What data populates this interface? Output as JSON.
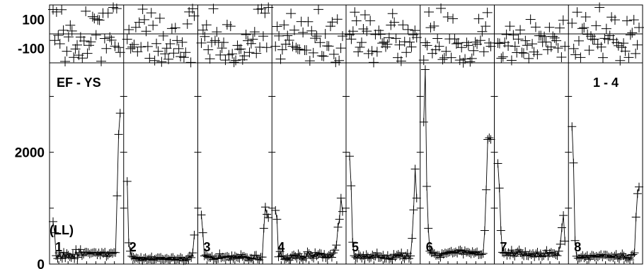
{
  "chart_data": {
    "type": "scatter",
    "panel_labels": [
      "1",
      "2",
      "3",
      "4",
      "5",
      "6",
      "7",
      "8"
    ],
    "annotations": {
      "left_title": "EF - YS",
      "right_title": "1 - 4",
      "unit_label": "(LL)"
    },
    "top_strip": {
      "y_ticks": [
        "100",
        "-100"
      ],
      "ylim": [
        -200,
        200
      ],
      "reference_line": 0,
      "marker": "+",
      "values": [
        [
          168,
          -45,
          152,
          -10,
          -68,
          167,
          25,
          -190,
          -120,
          -21,
          60,
          20,
          -162,
          -104,
          -77,
          -147,
          -22,
          -167,
          -49,
          157,
          -135,
          -79,
          -55,
          119,
          107,
          -8,
          98,
          95,
          -189,
          143,
          -32,
          -101,
          144,
          -23,
          -43,
          183,
          -85,
          175,
          -94,
          -128
        ],
        [
          -37,
          29,
          -102,
          -91,
          -74,
          45,
          -123,
          80,
          -90,
          171,
          98,
          18,
          -87,
          -168,
          145,
          59,
          -184,
          -67,
          -120,
          108,
          -193,
          -14,
          -138,
          -99,
          -175,
          -68,
          37,
          -133,
          42,
          -46,
          -102,
          -157,
          -58,
          -162,
          -128,
          69,
          152,
          -197,
          174,
          124
        ],
        [
          -63,
          26,
          -18,
          62,
          -110,
          -172,
          -58,
          174,
          -46,
          14,
          -58,
          -146,
          -98,
          -59,
          -181,
          64,
          -145,
          53,
          -138,
          -196,
          -183,
          -80,
          -107,
          -104,
          -179,
          -152,
          -5,
          -47,
          -128,
          -67,
          -37,
          14,
          -134,
          170,
          -92,
          174,
          -16,
          143,
          -94,
          183
        ],
        [
          -86,
          51,
          -14,
          -174,
          -109,
          62,
          -71,
          -12,
          -44,
          141,
          -86,
          26,
          -95,
          -105,
          -107,
          85,
          10,
          -112,
          -112,
          84,
          -186,
          21,
          -131,
          -30,
          -15,
          169,
          -60,
          -151,
          -155,
          0,
          -83,
          -85,
          53,
          82,
          -141,
          -196,
          101,
          -184,
          -98,
          -15
        ],
        [
          -5,
          -36,
          18,
          150,
          90,
          -124,
          -92,
          -59,
          34,
          132,
          19,
          -136,
          91,
          -118,
          -197,
          -4,
          -124,
          24,
          -3,
          -64,
          -57,
          -90,
          -72,
          -26,
          61,
          140,
          80,
          -31,
          -164,
          -76,
          -188,
          62,
          -54,
          -128,
          30,
          -57,
          -90,
          -6,
          24,
          -25
        ],
        [
          -181,
          -61,
          -80,
          151,
          43,
          -135,
          54,
          -110,
          -32,
          -86,
          176,
          -177,
          -165,
          -121,
          117,
          -35,
          -164,
          105,
          -35,
          -68,
          -63,
          -181,
          -94,
          -199,
          -174,
          -60,
          -80,
          -192,
          -170,
          -116,
          -57,
          -71,
          104,
          -45,
          16,
          -123,
          53,
          147,
          -63,
          -86
        ],
        [
          -63,
          -66,
          -168,
          -158,
          -59,
          -4,
          -83,
          53,
          -183,
          -8,
          -86,
          -129,
          -36,
          27,
          -129,
          -133,
          -47,
          -79,
          -170,
          100,
          -69,
          -125,
          47,
          -142,
          -13,
          -12,
          -57,
          -18,
          -56,
          -109,
          45,
          -90,
          -17,
          -28,
          -47,
          -98,
          41,
          -161,
          94,
          -86
        ],
        [
          74,
          -102,
          -144,
          150,
          -48,
          -163,
          37,
          43,
          117,
          -3,
          -113,
          -16,
          -38,
          -36,
          57,
          -72,
          183,
          -91,
          -164,
          -31,
          36,
          -38,
          -12,
          116,
          -39,
          97,
          -61,
          -82,
          -184,
          -93,
          -64,
          -119,
          90,
          -163,
          -7,
          8,
          97,
          -136,
          -76,
          44
        ]
      ]
    },
    "main": {
      "y_ticks": [
        "2000",
        "0"
      ],
      "ylim": [
        0,
        3600
      ],
      "marker": "+",
      "series": [
        {
          "name": "1",
          "values": [
            760,
            560,
            150,
            100,
            200,
            130,
            100,
            210,
            110,
            190,
            160,
            130,
            115,
            175,
            95,
            260,
            120,
            205,
            260,
            150,
            175,
            215,
            215,
            205,
            180,
            195,
            200,
            210,
            205,
            165,
            200,
            160,
            210,
            190,
            215,
            135,
            160,
            190,
            200,
            190,
            210,
            205,
            1220,
            2320,
            2700
          ]
        },
        {
          "name": "2",
          "values": [
            1480,
            380,
            230,
            140,
            125,
            95,
            110,
            100,
            75,
            120,
            65,
            100,
            115,
            80,
            90,
            95,
            130,
            70,
            85,
            95,
            115,
            110,
            120,
            90,
            80,
            95,
            105,
            85,
            75,
            115,
            120,
            80,
            70,
            95,
            90,
            120,
            100,
            60,
            65,
            80,
            110,
            145,
            115,
            200,
            520
          ]
        },
        {
          "name": "3",
          "values": [
            880,
            560,
            145,
            165,
            135,
            120,
            115,
            140,
            80,
            105,
            95,
            95,
            185,
            110,
            125,
            120,
            130,
            140,
            125,
            75,
            150,
            100,
            145,
            125,
            115,
            100,
            170,
            135,
            140,
            120,
            115,
            70,
            105,
            105,
            90,
            155,
            160,
            90,
            75,
            125,
            125,
            640,
            1020,
            890,
            830
          ]
        },
        {
          "name": "4",
          "values": [
            960,
            800,
            130,
            225,
            145,
            140,
            85,
            100,
            115,
            70,
            115,
            150,
            165,
            140,
            100,
            185,
            145,
            115,
            75,
            135,
            105,
            220,
            190,
            160,
            130,
            105,
            205,
            145,
            170,
            195,
            185,
            120,
            175,
            110,
            130,
            155,
            175,
            120,
            200,
            250,
            340,
            660,
            800,
            1180,
            940
          ]
        },
        {
          "name": "5",
          "values": [
            1930,
            1400,
            390,
            150,
            125,
            105,
            175,
            145,
            105,
            150,
            100,
            170,
            130,
            100,
            120,
            165,
            140,
            140,
            200,
            115,
            115,
            125,
            160,
            100,
            100,
            155,
            90,
            105,
            80,
            175,
            125,
            160,
            175,
            145,
            200,
            125,
            95,
            145,
            190,
            100,
            145,
            460,
            970,
            1700,
            1180
          ]
        },
        {
          "name": "6",
          "values": [
            2540,
            3480,
            1390,
            640,
            230,
            200,
            205,
            190,
            155,
            160,
            155,
            120,
            190,
            175,
            200,
            190,
            205,
            215,
            230,
            195,
            205,
            220,
            195,
            245,
            255,
            230,
            175,
            240,
            210,
            215,
            200,
            180,
            225,
            190,
            205,
            220,
            165,
            170,
            170,
            190,
            600,
            1330,
            2230,
            2260,
            2230
          ]
        },
        {
          "name": "7",
          "values": [
            1800,
            1360,
            600,
            210,
            195,
            210,
            155,
            205,
            160,
            250,
            185,
            140,
            200,
            220,
            255,
            200,
            170,
            145,
            225,
            150,
            145,
            185,
            165,
            190,
            130,
            185,
            215,
            140,
            185,
            135,
            150,
            190,
            245,
            140,
            195,
            210,
            190,
            190,
            165,
            150,
            230,
            355,
            650,
            870,
            410
          ]
        },
        {
          "name": "8",
          "values": [
            2460,
            1810,
            420,
            140,
            105,
            105,
            120,
            155,
            110,
            130,
            155,
            85,
            125,
            160,
            150,
            125,
            140,
            125,
            150,
            170,
            125,
            165,
            165,
            160,
            130,
            120,
            140,
            115,
            145,
            175,
            115,
            90,
            140,
            185,
            145,
            120,
            100,
            105,
            75,
            160,
            170,
            200,
            840,
            1260,
            1380
          ]
        }
      ]
    }
  }
}
